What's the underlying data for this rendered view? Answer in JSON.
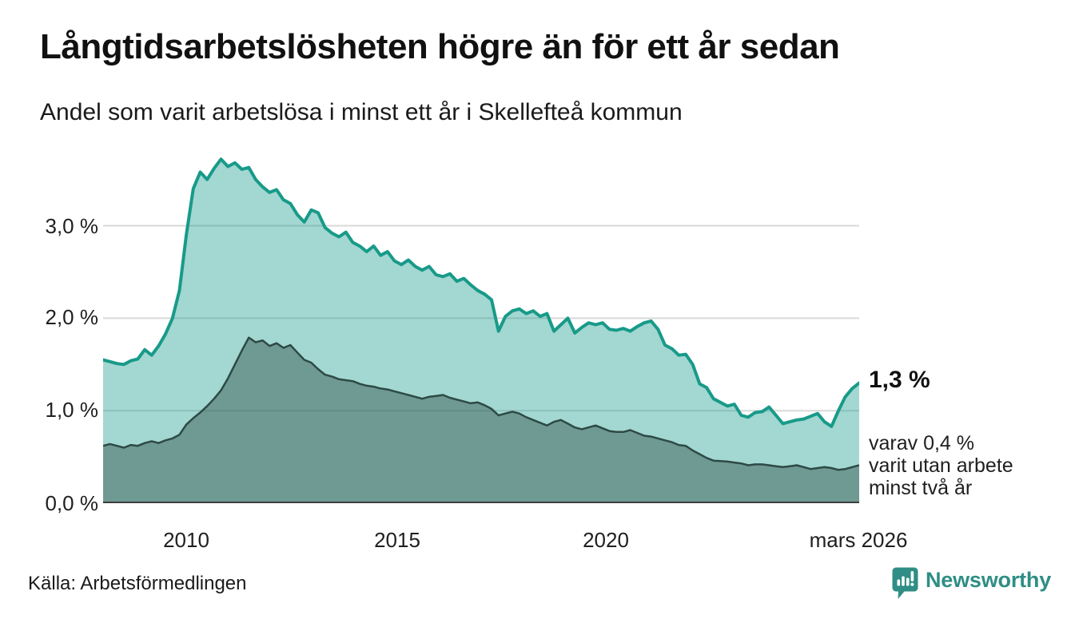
{
  "header": {
    "title": "Långtidsarbetslösheten högre än för ett år sedan",
    "subtitle": "Andel som varit arbetslösa i minst ett år i Skellefteå kommun"
  },
  "axes": {
    "y_ticks": [
      "3,0 %",
      "2,0 %",
      "1,0 %",
      "0,0 %"
    ],
    "x_ticks": [
      "2010",
      "2015",
      "2020",
      "mars 2026"
    ]
  },
  "annotations": {
    "value_label": "1,3 %",
    "sub_lines": [
      "varav 0,4 %",
      "varit utan arbete",
      "minst två år"
    ]
  },
  "footer": {
    "source": "Källa: Arbetsförmedlingen",
    "brand": "Newsworthy"
  },
  "colors": {
    "line_total": "#189a89",
    "area_total": "rgba(26,156,139,0.40)",
    "line_two_year": "#2d4a45",
    "area_two_year": "rgba(45,74,69,0.44)",
    "grid": "#d9d9d9",
    "baseline": "#3d3d3d",
    "brand_teal": "#2f8e85",
    "text": "#1a1a1a"
  },
  "chart_data": {
    "type": "area",
    "title": "Långtidsarbetslösheten högre än för ett år sedan",
    "subtitle": "Andel som varit arbetslösa i minst ett år i Skellefteå kommun",
    "unit": "%",
    "x_start": 2008.0,
    "x_step": 0.1667,
    "x_end": 2026.17,
    "x_tick_values": [
      2010,
      2015,
      2020,
      2026.17
    ],
    "x_tick_labels": [
      "2010",
      "2015",
      "2020",
      "mars 2026"
    ],
    "ylim": [
      0,
      3.8
    ],
    "grid_values": [
      1.0,
      2.0,
      3.0
    ],
    "grid_labels": [
      "1,0 %",
      "2,0 %",
      "3,0 %"
    ],
    "legend_position": "none",
    "latest_point": {
      "label": "mars 2026",
      "total": 1.3,
      "two_years": 0.4
    },
    "series": [
      {
        "name": "Andel arbetslösa minst ett år",
        "values": [
          1.55,
          1.53,
          1.51,
          1.5,
          1.54,
          1.56,
          1.66,
          1.6,
          1.7,
          1.83,
          2.0,
          2.3,
          2.9,
          3.4,
          3.58,
          3.5,
          3.62,
          3.72,
          3.64,
          3.68,
          3.61,
          3.63,
          3.5,
          3.42,
          3.36,
          3.39,
          3.28,
          3.24,
          3.12,
          3.04,
          3.17,
          3.14,
          2.98,
          2.92,
          2.88,
          2.93,
          2.82,
          2.78,
          2.72,
          2.78,
          2.68,
          2.72,
          2.62,
          2.58,
          2.63,
          2.56,
          2.52,
          2.56,
          2.47,
          2.45,
          2.48,
          2.4,
          2.43,
          2.36,
          2.3,
          2.26,
          2.2,
          1.86,
          2.02,
          2.08,
          2.1,
          2.05,
          2.08,
          2.02,
          2.05,
          1.86,
          1.93,
          2.0,
          1.84,
          1.9,
          1.95,
          1.93,
          1.95,
          1.88,
          1.87,
          1.89,
          1.86,
          1.91,
          1.95,
          1.97,
          1.88,
          1.71,
          1.67,
          1.6,
          1.61,
          1.5,
          1.29,
          1.25,
          1.13,
          1.09,
          1.05,
          1.07,
          0.95,
          0.93,
          0.98,
          0.99,
          1.04,
          0.95,
          0.86,
          0.88,
          0.9,
          0.91,
          0.94,
          0.97,
          0.88,
          0.83,
          1.0,
          1.15,
          1.24,
          1.3
        ]
      },
      {
        "name": "varav utan arbete minst två år",
        "values": [
          0.62,
          0.64,
          0.62,
          0.6,
          0.63,
          0.62,
          0.65,
          0.67,
          0.65,
          0.68,
          0.7,
          0.74,
          0.85,
          0.92,
          0.98,
          1.05,
          1.13,
          1.22,
          1.35,
          1.5,
          1.65,
          1.79,
          1.74,
          1.76,
          1.7,
          1.73,
          1.68,
          1.71,
          1.63,
          1.55,
          1.52,
          1.45,
          1.39,
          1.37,
          1.34,
          1.33,
          1.32,
          1.29,
          1.27,
          1.26,
          1.24,
          1.23,
          1.21,
          1.19,
          1.17,
          1.15,
          1.13,
          1.15,
          1.16,
          1.17,
          1.14,
          1.12,
          1.1,
          1.08,
          1.09,
          1.06,
          1.02,
          0.95,
          0.97,
          0.99,
          0.97,
          0.93,
          0.9,
          0.87,
          0.84,
          0.88,
          0.9,
          0.86,
          0.82,
          0.8,
          0.82,
          0.84,
          0.81,
          0.78,
          0.77,
          0.77,
          0.79,
          0.76,
          0.73,
          0.72,
          0.7,
          0.68,
          0.66,
          0.63,
          0.62,
          0.57,
          0.53,
          0.49,
          0.46,
          0.455,
          0.45,
          0.44,
          0.43,
          0.41,
          0.42,
          0.42,
          0.41,
          0.4,
          0.39,
          0.4,
          0.41,
          0.39,
          0.37,
          0.38,
          0.39,
          0.38,
          0.36,
          0.37,
          0.39,
          0.41
        ]
      }
    ]
  }
}
